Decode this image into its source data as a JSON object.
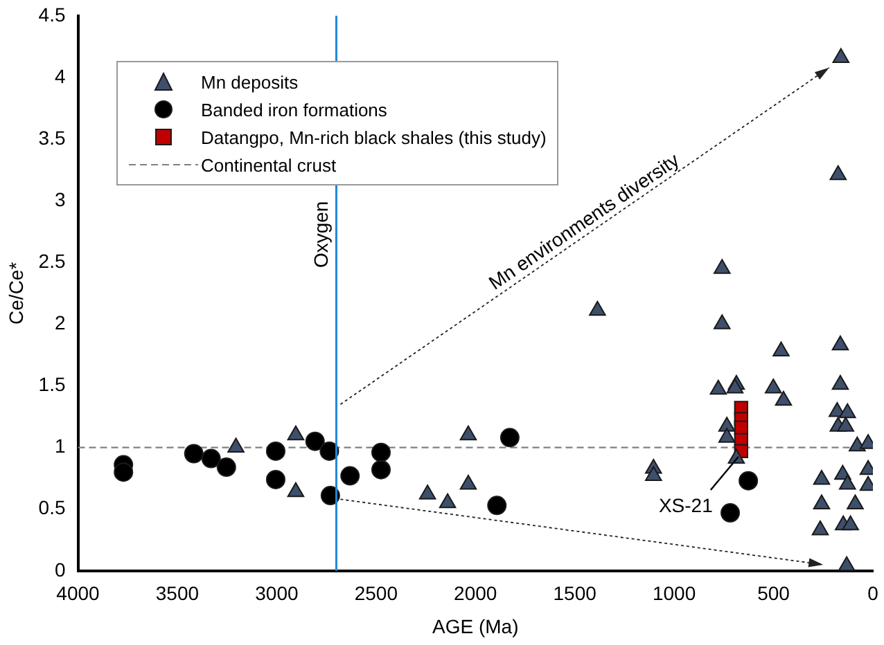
{
  "chart_data": {
    "type": "scatter",
    "xlabel": "AGE (Ma)",
    "ylabel": "Ce/Ce*",
    "xlim": [
      4000,
      0
    ],
    "xticks": [
      4000,
      3500,
      3000,
      2500,
      2000,
      1500,
      1000,
      500,
      0
    ],
    "ylim": [
      0,
      4.5
    ],
    "yticks": [
      0,
      0.5,
      1,
      1.5,
      2,
      2.5,
      3,
      3.5,
      4,
      4.5
    ],
    "grid": false,
    "legend": "top left",
    "series": [
      {
        "name": "Mn deposits",
        "marker": "triangle",
        "color": "#3d4f6b",
        "x": [
          3205,
          2904,
          2904,
          2241,
          2140,
          2036,
          2036,
          1386,
          1104,
          1104,
          161,
          175,
          759,
          759,
          462,
          164,
          778,
          687,
          694,
          501,
          450,
          164,
          180,
          128,
          175,
          137,
          735,
          735,
          687,
          79,
          24,
          258,
          152,
          128,
          24,
          24,
          258,
          89,
          265,
          149,
          113,
          132
        ],
        "values": [
          1.0,
          1.1,
          0.64,
          0.62,
          0.55,
          1.1,
          0.7,
          2.11,
          0.83,
          0.77,
          4.16,
          3.21,
          2.45,
          2.0,
          1.78,
          1.83,
          1.47,
          1.51,
          1.48,
          1.48,
          1.38,
          1.51,
          1.29,
          1.28,
          1.17,
          1.17,
          1.17,
          1.08,
          0.91,
          1.01,
          1.03,
          0.74,
          0.78,
          0.7,
          0.82,
          0.69,
          0.54,
          0.54,
          0.33,
          0.37,
          0.37,
          0.04
        ]
      },
      {
        "name": "Banded iron formations",
        "marker": "circle",
        "color": "#000000",
        "x": [
          3771,
          3771,
          3417,
          3330,
          3253,
          3005,
          3005,
          2807,
          2735,
          2730,
          2631,
          2475,
          2475,
          1827,
          1892,
          627,
          718
        ],
        "values": [
          0.86,
          0.8,
          0.95,
          0.91,
          0.84,
          0.97,
          0.74,
          1.05,
          0.97,
          0.61,
          0.77,
          0.96,
          0.82,
          1.08,
          0.53,
          0.73,
          0.47
        ]
      },
      {
        "name": "Datangpo, Mn-rich black shales (this study)",
        "marker": "square",
        "color": "#c00000",
        "x": [
          663,
          663,
          663,
          663,
          663
        ],
        "values": [
          1.32,
          1.23,
          1.16,
          1.06,
          0.97
        ]
      },
      {
        "name": "Continental crust",
        "type": "line",
        "marker": "none",
        "line_style": "dashed",
        "color": "#808080",
        "x": [
          4000,
          0
        ],
        "values": [
          1,
          1
        ]
      }
    ],
    "ref_lines": [
      {
        "axis": "x",
        "value": 2700,
        "label": "Oxygen",
        "color": "#1f88d8"
      }
    ],
    "annotations": [
      {
        "text": "XS-21",
        "x": 663,
        "y": 0.97
      },
      "Mn environments diversity"
    ]
  }
}
